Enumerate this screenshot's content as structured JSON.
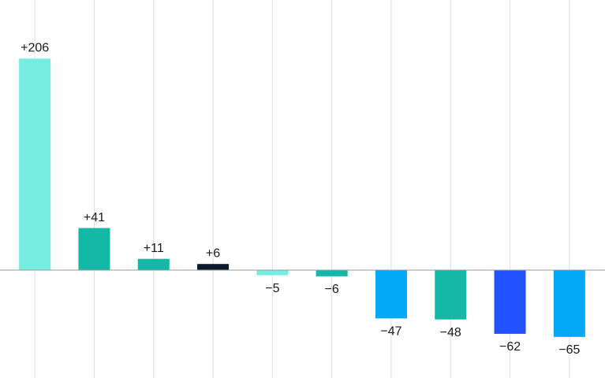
{
  "chart_data": {
    "type": "bar",
    "values": [
      206,
      41,
      11,
      6,
      -5,
      -6,
      -47,
      -48,
      -62,
      -65
    ],
    "value_labels": [
      "+206",
      "+41",
      "+11",
      "+6",
      "−5",
      "−6",
      "−47",
      "−48",
      "−62",
      "−65"
    ],
    "colors": [
      "#76ede0",
      "#14b8a6",
      "#14b8a6",
      "#0b1b2b",
      "#76ede0",
      "#14b8a6",
      "#03a9f4",
      "#14b8a6",
      "#2251ff",
      "#03a9f4"
    ],
    "ylim": [
      -105,
      263
    ]
  }
}
